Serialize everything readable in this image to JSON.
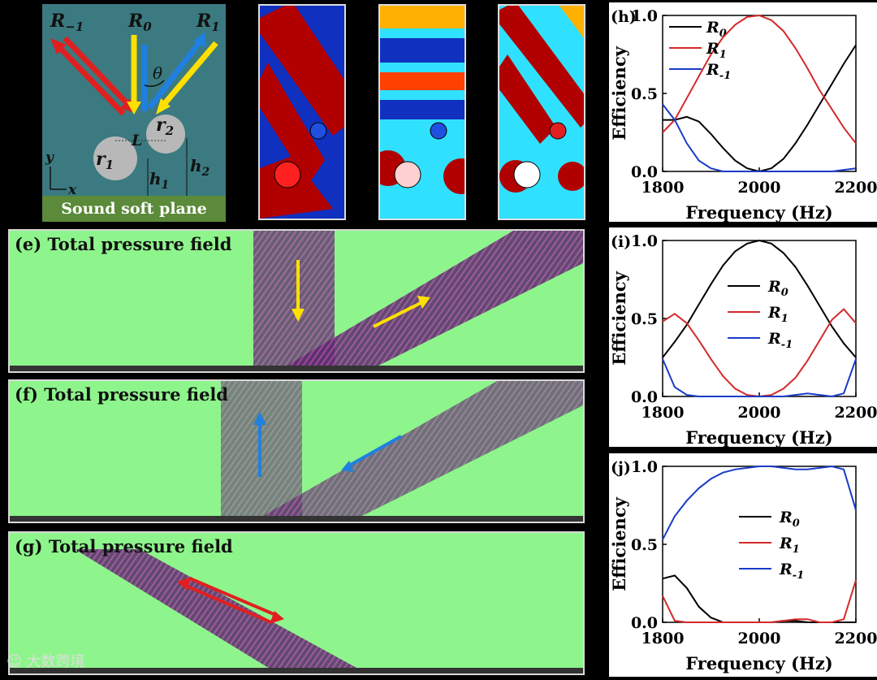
{
  "schematic": {
    "label_R_minus1": "R",
    "label_R_minus1_sub": "−1",
    "label_R0": "R",
    "label_R0_sub": "0",
    "label_R1": "R",
    "label_R1_sub": "1",
    "label_theta": "θ",
    "label_L": "L",
    "label_r1": "r",
    "label_r1_sub": "1",
    "label_r2": "r",
    "label_r2_sub": "2",
    "label_h1": "h",
    "label_h1_sub": "1",
    "label_h2": "h",
    "label_h2_sub": "2",
    "label_y": "y",
    "label_x": "x",
    "plane_label": "Sound  soft plane",
    "bg_color": "#3b7a80",
    "plane_color": "#5a8a3a"
  },
  "field_panels": [
    {
      "tag": "(e)",
      "title": "Total pressure field"
    },
    {
      "tag": "(f)",
      "title": "Total pressure field"
    },
    {
      "tag": "(g)",
      "title": "Total pressure field"
    }
  ],
  "watermark": "大数跨境",
  "chart_data": [
    {
      "type": "line",
      "panel_label": "(h)",
      "xlabel": "Frequency (Hz)",
      "ylabel": "Efficiency",
      "xlim": [
        1800,
        2200
      ],
      "ylim": [
        0,
        1
      ],
      "x_ticks": [
        "1800",
        "2000",
        "2200"
      ],
      "y_ticks": [
        "0.0",
        "0.5",
        "1.0"
      ],
      "legend_position": "top-left",
      "x": [
        1800,
        1825,
        1850,
        1875,
        1900,
        1925,
        1950,
        1975,
        2000,
        2025,
        2050,
        2075,
        2100,
        2125,
        2150,
        2175,
        2200
      ],
      "series": [
        {
          "name": "R",
          "sub": "0",
          "color": "#000000",
          "values": [
            0.33,
            0.33,
            0.35,
            0.32,
            0.24,
            0.15,
            0.07,
            0.02,
            0.0,
            0.02,
            0.08,
            0.18,
            0.3,
            0.43,
            0.56,
            0.69,
            0.81
          ]
        },
        {
          "name": "R",
          "sub": "1",
          "color": "#d42a2a",
          "values": [
            0.25,
            0.33,
            0.47,
            0.61,
            0.75,
            0.86,
            0.94,
            0.99,
            1.0,
            0.97,
            0.9,
            0.79,
            0.66,
            0.52,
            0.4,
            0.28,
            0.18
          ]
        },
        {
          "name": "R",
          "sub": "-1",
          "color": "#1a3cc8",
          "values": [
            0.43,
            0.33,
            0.18,
            0.07,
            0.02,
            0.0,
            0.0,
            0.0,
            0.0,
            0.0,
            0.0,
            0.0,
            0.0,
            0.0,
            0.0,
            0.01,
            0.02
          ]
        }
      ]
    },
    {
      "type": "line",
      "panel_label": "(i)",
      "xlabel": "Frequency (Hz)",
      "ylabel": "Efficiency",
      "xlim": [
        1800,
        2200
      ],
      "ylim": [
        0,
        1
      ],
      "x_ticks": [
        "1800",
        "2000",
        "2200"
      ],
      "y_ticks": [
        "0.0",
        "0.5",
        "1.0"
      ],
      "legend_position": "right",
      "x": [
        1800,
        1825,
        1850,
        1875,
        1900,
        1925,
        1950,
        1975,
        2000,
        2025,
        2050,
        2075,
        2100,
        2125,
        2150,
        2175,
        2200
      ],
      "series": [
        {
          "name": "R",
          "sub": "0",
          "color": "#000000",
          "values": [
            0.25,
            0.35,
            0.46,
            0.59,
            0.72,
            0.84,
            0.93,
            0.98,
            1.0,
            0.98,
            0.92,
            0.83,
            0.71,
            0.58,
            0.45,
            0.34,
            0.25
          ]
        },
        {
          "name": "R",
          "sub": "1",
          "color": "#d42a2a",
          "values": [
            0.48,
            0.53,
            0.47,
            0.36,
            0.24,
            0.13,
            0.05,
            0.01,
            0.0,
            0.01,
            0.05,
            0.12,
            0.23,
            0.36,
            0.49,
            0.56,
            0.47
          ]
        },
        {
          "name": "R",
          "sub": "-1",
          "color": "#1a3cc8",
          "values": [
            0.24,
            0.06,
            0.01,
            0.0,
            0.0,
            0.0,
            0.0,
            0.0,
            0.0,
            0.0,
            0.0,
            0.01,
            0.02,
            0.01,
            0.0,
            0.02,
            0.24
          ]
        }
      ]
    },
    {
      "type": "line",
      "panel_label": "(j)",
      "xlabel": "Frequency (Hz)",
      "ylabel": "Efficiency",
      "xlim": [
        1800,
        2200
      ],
      "ylim": [
        0,
        1
      ],
      "x_ticks": [
        "1800",
        "2000",
        "2200"
      ],
      "y_ticks": [
        "0.0",
        "0.5",
        "1.0"
      ],
      "legend_position": "right",
      "x": [
        1800,
        1825,
        1850,
        1875,
        1900,
        1925,
        1950,
        1975,
        2000,
        2025,
        2050,
        2075,
        2100,
        2125,
        2150,
        2175,
        2200
      ],
      "series": [
        {
          "name": "R",
          "sub": "0",
          "color": "#000000",
          "values": [
            0.28,
            0.3,
            0.22,
            0.1,
            0.03,
            0.0,
            0.0,
            0.0,
            0.0,
            0.0,
            0.01,
            0.01,
            0.0,
            0.0,
            0.0,
            0.0,
            0.0
          ]
        },
        {
          "name": "R",
          "sub": "1",
          "color": "#d42a2a",
          "values": [
            0.17,
            0.01,
            0.0,
            0.0,
            0.0,
            0.0,
            0.0,
            0.0,
            0.0,
            0.0,
            0.01,
            0.02,
            0.02,
            0.0,
            0.0,
            0.02,
            0.27
          ]
        },
        {
          "name": "R",
          "sub": "-1",
          "color": "#1a3cc8",
          "values": [
            0.53,
            0.68,
            0.78,
            0.86,
            0.92,
            0.96,
            0.98,
            0.99,
            1.0,
            1.0,
            0.99,
            0.98,
            0.98,
            0.99,
            1.0,
            0.98,
            0.72
          ]
        }
      ]
    }
  ]
}
